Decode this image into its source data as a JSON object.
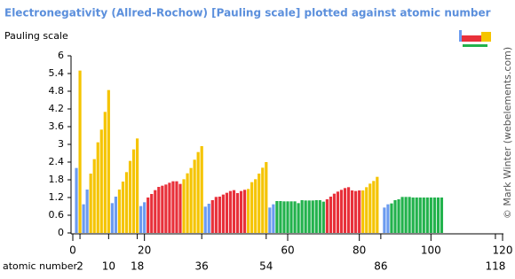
{
  "chart_data": {
    "type": "bar",
    "title": "Electronegativity (Allred-Rochow) [Pauling scale] plotted against atomic number",
    "y_label": "Pauling scale",
    "x_label": "atomic number",
    "credit": "© Mark Winter (webelements.com)",
    "x": [
      1,
      2,
      3,
      4,
      5,
      6,
      7,
      8,
      9,
      10,
      11,
      12,
      13,
      14,
      15,
      16,
      17,
      18,
      19,
      20,
      21,
      22,
      23,
      24,
      25,
      26,
      27,
      28,
      29,
      30,
      31,
      32,
      33,
      34,
      35,
      36,
      37,
      38,
      39,
      40,
      41,
      42,
      43,
      44,
      45,
      46,
      47,
      48,
      49,
      50,
      51,
      52,
      53,
      54,
      55,
      56,
      57,
      58,
      59,
      60,
      61,
      62,
      63,
      64,
      65,
      66,
      67,
      68,
      69,
      70,
      71,
      72,
      73,
      74,
      75,
      76,
      77,
      78,
      79,
      80,
      81,
      82,
      83,
      84,
      85,
      86,
      87,
      88,
      89,
      90,
      91,
      92,
      93,
      94,
      95,
      96,
      97,
      98,
      99,
      100,
      101,
      102,
      103
    ],
    "values": [
      2.2,
      5.5,
      0.97,
      1.47,
      2.01,
      2.5,
      3.07,
      3.5,
      4.1,
      4.84,
      1.01,
      1.23,
      1.47,
      1.74,
      2.06,
      2.44,
      2.83,
      3.2,
      0.91,
      1.04,
      1.2,
      1.32,
      1.45,
      1.56,
      1.6,
      1.64,
      1.7,
      1.75,
      1.75,
      1.66,
      1.82,
      2.02,
      2.2,
      2.48,
      2.74,
      2.94,
      0.89,
      0.99,
      1.11,
      1.22,
      1.23,
      1.3,
      1.36,
      1.42,
      1.45,
      1.35,
      1.42,
      1.46,
      1.49,
      1.72,
      1.82,
      2.01,
      2.21,
      2.4,
      0.86,
      0.97,
      1.08,
      1.08,
      1.07,
      1.07,
      1.07,
      1.07,
      1.01,
      1.11,
      1.1,
      1.1,
      1.1,
      1.11,
      1.11,
      1.06,
      1.14,
      1.23,
      1.33,
      1.4,
      1.46,
      1.52,
      1.55,
      1.44,
      1.42,
      1.44,
      1.44,
      1.55,
      1.67,
      1.76,
      1.9,
      null,
      0.86,
      0.97,
      1.0,
      1.11,
      1.14,
      1.22,
      1.22,
      1.22,
      1.2,
      1.2,
      1.2,
      1.2,
      1.2,
      1.2,
      1.2,
      1.2,
      1.2
    ],
    "colors": [
      "#6b9bf0",
      "#f5c400",
      "#6b9bf0",
      "#6b9bf0",
      "#f5c400",
      "#f5c400",
      "#f5c400",
      "#f5c400",
      "#f5c400",
      "#f5c400",
      "#6b9bf0",
      "#6b9bf0",
      "#f5c400",
      "#f5c400",
      "#f5c400",
      "#f5c400",
      "#f5c400",
      "#f5c400",
      "#6b9bf0",
      "#6b9bf0",
      "#e8303a",
      "#e8303a",
      "#e8303a",
      "#e8303a",
      "#e8303a",
      "#e8303a",
      "#e8303a",
      "#e8303a",
      "#e8303a",
      "#e8303a",
      "#f5c400",
      "#f5c400",
      "#f5c400",
      "#f5c400",
      "#f5c400",
      "#f5c400",
      "#6b9bf0",
      "#6b9bf0",
      "#e8303a",
      "#e8303a",
      "#e8303a",
      "#e8303a",
      "#e8303a",
      "#e8303a",
      "#e8303a",
      "#e8303a",
      "#e8303a",
      "#e8303a",
      "#f5c400",
      "#f5c400",
      "#f5c400",
      "#f5c400",
      "#f5c400",
      "#f5c400",
      "#6b9bf0",
      "#6b9bf0",
      "#22b24c",
      "#22b24c",
      "#22b24c",
      "#22b24c",
      "#22b24c",
      "#22b24c",
      "#22b24c",
      "#22b24c",
      "#22b24c",
      "#22b24c",
      "#22b24c",
      "#22b24c",
      "#22b24c",
      "#22b24c",
      "#e8303a",
      "#e8303a",
      "#e8303a",
      "#e8303a",
      "#e8303a",
      "#e8303a",
      "#e8303a",
      "#e8303a",
      "#e8303a",
      "#e8303a",
      "#f5c400",
      "#f5c400",
      "#f5c400",
      "#f5c400",
      "#f5c400",
      "#f5c400",
      "#6b9bf0",
      "#6b9bf0",
      "#22b24c",
      "#22b24c",
      "#22b24c",
      "#22b24c",
      "#22b24c",
      "#22b24c",
      "#22b24c",
      "#22b24c",
      "#22b24c",
      "#22b24c",
      "#22b24c",
      "#22b24c",
      "#22b24c",
      "#22b24c",
      "#22b24c"
    ],
    "xlim": [
      0,
      120
    ],
    "xticks": [
      0,
      20,
      60,
      80,
      100,
      120
    ],
    "highlight_ticks": [
      2,
      10,
      18,
      36,
      54,
      86,
      118
    ],
    "ylim": [
      0,
      6
    ],
    "yticks": [
      0,
      0.6,
      1.2,
      1.8,
      2.4,
      3,
      3.6,
      4.2,
      4.8,
      5.4,
      6
    ],
    "grid": false
  }
}
